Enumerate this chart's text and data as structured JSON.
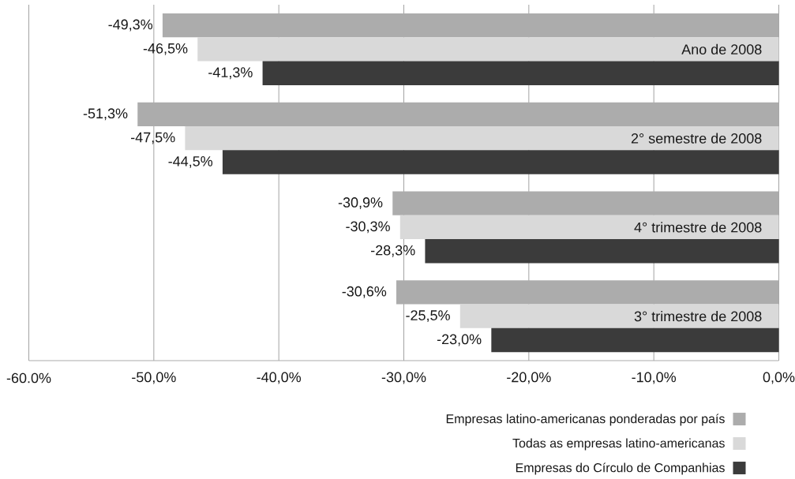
{
  "chart_data": {
    "type": "bar",
    "orientation": "horizontal",
    "categories": [
      "Ano de 2008",
      "2° semestre de 2008",
      "4° trimestre de 2008",
      "3° trimestre de 2008"
    ],
    "series": [
      {
        "name": "Empresas latino-americanas ponderadas por país",
        "color": "#acacac",
        "values": [
          -49.3,
          -51.3,
          -30.9,
          -30.6
        ],
        "value_labels": [
          "-49,3%",
          "-51,3%",
          "-30,9%",
          "-30,6%"
        ]
      },
      {
        "name": "Todas as empresas latino-americanas",
        "color": "#d9d9d9",
        "values": [
          -46.5,
          -47.5,
          -30.3,
          -25.5
        ],
        "value_labels": [
          "-46,5%",
          "-47,5%",
          "-30,3%",
          "-25,5%"
        ]
      },
      {
        "name": "Empresas do Círculo de Companhias",
        "color": "#3b3b3b",
        "values": [
          -41.3,
          -44.5,
          -28.3,
          -23.0
        ],
        "value_labels": [
          "-41,3%",
          "-44,5%",
          "-28,3%",
          "-23,0%"
        ]
      }
    ],
    "xlim": [
      -60,
      0
    ],
    "xticks": [
      {
        "value": -60,
        "label": "-60.0%"
      },
      {
        "value": -50,
        "label": "-50,0%"
      },
      {
        "value": -40,
        "label": "-40,0%"
      },
      {
        "value": -30,
        "label": "-30,0%"
      },
      {
        "value": -20,
        "label": "-20,0%"
      },
      {
        "value": -10,
        "label": "-10,0%"
      },
      {
        "value": 0,
        "label": "0,0%"
      }
    ],
    "grid": "x",
    "legend": "bottom right"
  }
}
